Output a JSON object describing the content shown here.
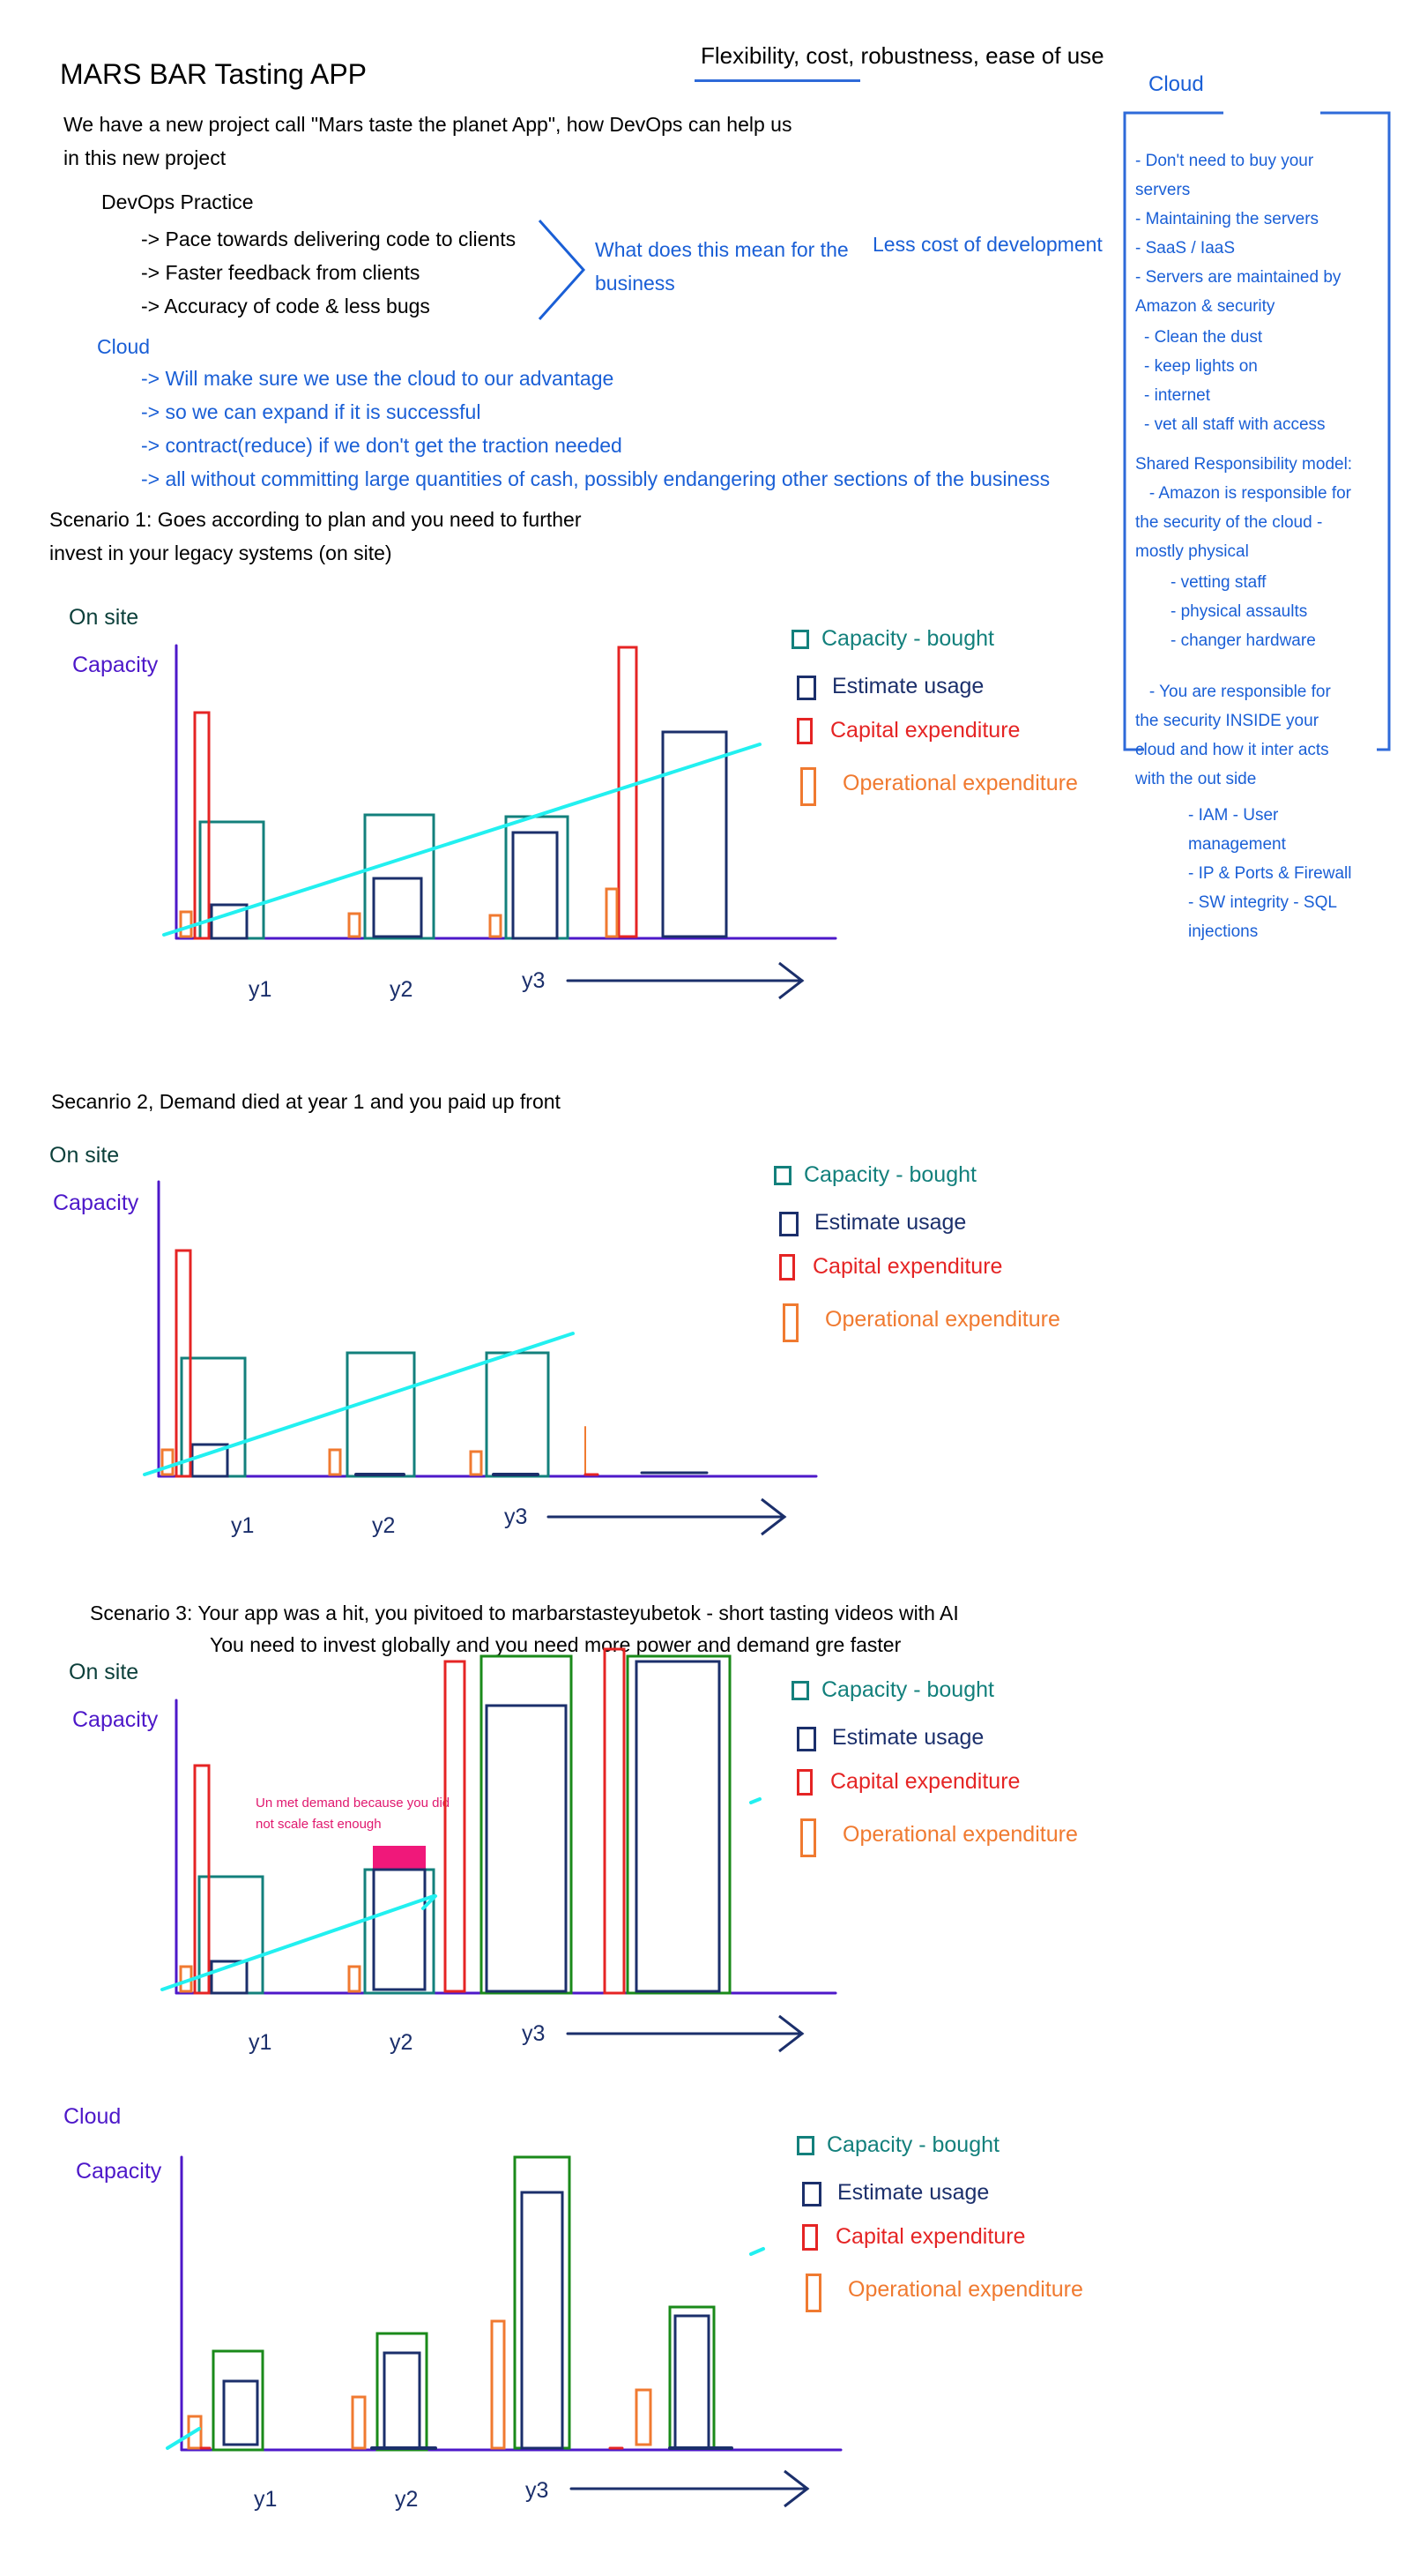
{
  "header": {
    "title": "MARS BAR Tasting APP",
    "criteria": "Flexibility, cost, robustness, ease of use"
  },
  "intro": {
    "line1": "We have a new project call \"Mars taste the planet App\", how DevOps can help us",
    "line2": "in this new project"
  },
  "devops": {
    "heading": "DevOps Practice",
    "items": [
      "-> Pace towards delivering code to clients",
      "-> Faster feedback from clients",
      "-> Accuracy of code & less bugs"
    ],
    "question_line1": "What does this mean for the",
    "question_line2": "business",
    "answer": "Less cost of development"
  },
  "cloud_points": {
    "heading": "Cloud",
    "items": [
      "-> Will make sure we use the cloud to our advantage",
      "-> so we can expand if it is successful",
      "-> contract(reduce) if we don't get the traction needed",
      "-> all without committing large quantities of cash, possibly endangering other sections of the business"
    ]
  },
  "sidebar": {
    "heading": "Cloud",
    "lines": [
      "- Don't need to buy your",
      "servers",
      "- Maintaining the servers",
      "- SaaS / IaaS",
      "- Servers are maintained by",
      "Amazon & security"
    ],
    "sub_lines": [
      "- Clean the dust",
      "- keep lights on",
      "- internet",
      "- vet all staff with access"
    ],
    "shared_lines": [
      "Shared Responsibility model:",
      "   - Amazon is responsible for",
      "the security of the cloud -",
      "mostly physical"
    ],
    "physical_lines": [
      "- vetting staff",
      "- physical assaults",
      "- changer hardware"
    ],
    "inside_lines": [
      "   - You are responsible for",
      "the security INSIDE your",
      "cloud and how it inter acts",
      "with the out side"
    ],
    "inside_items": [
      "- IAM - User",
      "management",
      "- IP & Ports & Firewall",
      "- SW integrity - SQL",
      "injections"
    ]
  },
  "legend": {
    "capacity_bought": "Capacity - bought",
    "estimate_usage": "Estimate usage",
    "capital_expenditure": "Capital expenditure",
    "operational_expenditure": "Operational expenditure"
  },
  "colors": {
    "capacity_bought": "#13807c",
    "estimate_usage": "#1b2f6b",
    "capital_expenditure": "#e52424",
    "operational_expenditure": "#f07a30",
    "trend_line": "#22f0f0",
    "axis": "#4d18c9",
    "cloud_capacity": "#1a8a1a",
    "unmet": "#f0187a"
  },
  "scenarios": [
    {
      "title_lines": [
        "Scenario 1: Goes according to plan and you need to further",
        "invest in your legacy systems (on site)"
      ],
      "location": "On site",
      "axis_label": "Capacity",
      "ticks": [
        "y1",
        "y2",
        "y3"
      ]
    },
    {
      "title_lines": [
        "Secanrio 2, Demand died at year 1 and you paid up front"
      ],
      "location": "On site",
      "axis_label": "Capacity",
      "ticks": [
        "y1",
        "y2",
        "y3"
      ]
    },
    {
      "title_lines": [
        "Scenario 3: Your app was a hit, you pivitoed to marbarstasteyubetok - short tasting videos with AI",
        "You need to invest globally and you need more power and demand gre faster"
      ],
      "location": "On site",
      "axis_label": "Capacity",
      "ticks": [
        "y1",
        "y2",
        "y3"
      ],
      "annotation_lines": [
        "Un met demand because you did",
        "not scale fast enough"
      ]
    },
    {
      "title_lines": [],
      "location": "Cloud",
      "axis_label": "Capacity",
      "ticks": [
        "y1",
        "y2",
        "y3"
      ]
    }
  ]
}
